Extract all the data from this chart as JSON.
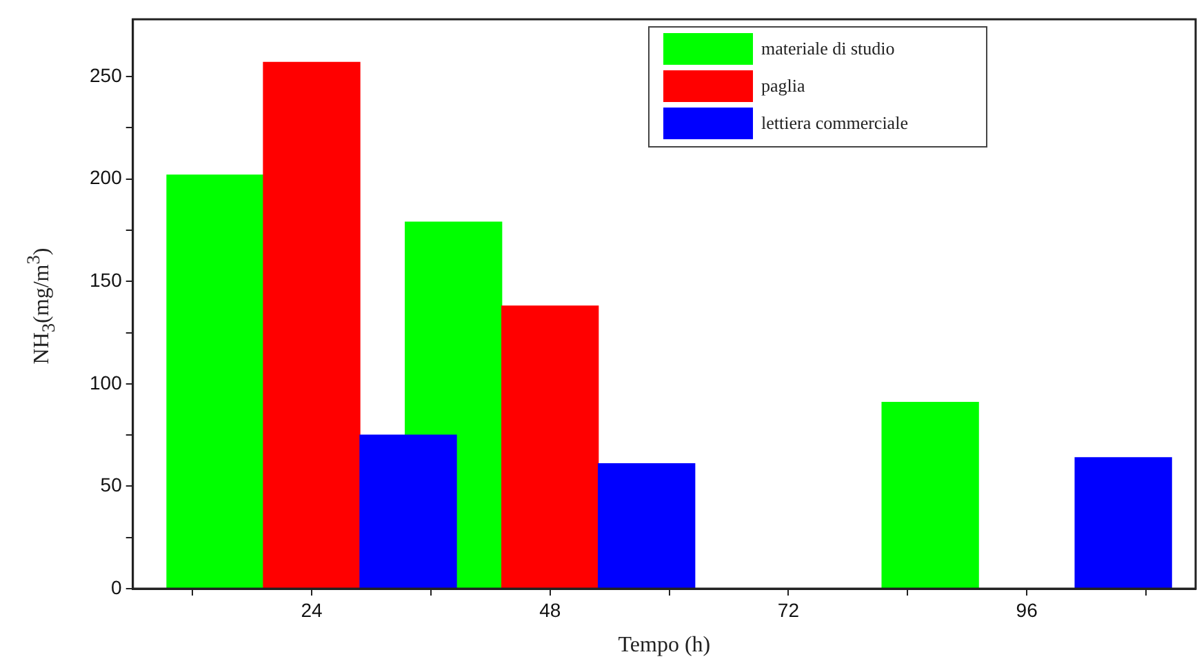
{
  "chart_data": {
    "type": "bar",
    "xlabel": "Tempo (h)",
    "ylabel": "NH$_{3}$(mg/m$^{3}$)",
    "x": [
      24,
      48,
      96
    ],
    "series": [
      {
        "name": "materiale di studio",
        "color": "#00ff00",
        "values": [
          202,
          179,
          91
        ]
      },
      {
        "name": "paglia",
        "color": "#ff0000",
        "values": [
          257,
          138,
          null
        ]
      },
      {
        "name": "lettiera commerciale",
        "color": "#0000ff",
        "values": [
          75,
          61,
          64
        ]
      }
    ],
    "xlim": [
      6,
      113
    ],
    "xticks": [
      {
        "value": 12,
        "label": null
      },
      24,
      {
        "value": 36,
        "label": null
      },
      48,
      {
        "value": 60,
        "label": null
      },
      72,
      {
        "value": 84,
        "label": null
      },
      96,
      {
        "value": 108,
        "label": null
      }
    ],
    "ylim": [
      0,
      278
    ],
    "yticks": [
      0,
      {
        "value": 25,
        "label": null
      },
      50,
      {
        "value": 75,
        "label": null
      },
      100,
      {
        "value": 125,
        "label": null
      },
      150,
      {
        "value": 175,
        "label": null
      },
      200,
      {
        "value": 225,
        "label": null
      },
      250
    ],
    "legend": "top right",
    "grid": false
  }
}
